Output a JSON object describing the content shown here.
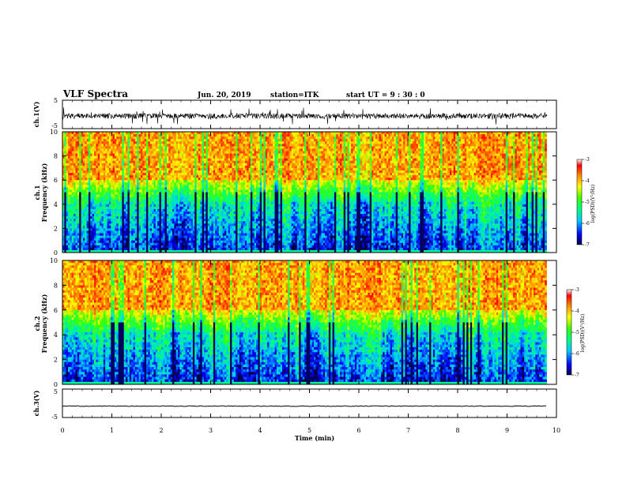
{
  "header": {
    "title": "VLF Spectra",
    "date": "Jun. 20, 2019",
    "station": "station=ITK",
    "start": "start UT =  9 : 30 : 0"
  },
  "chart_data": [
    {
      "type": "line",
      "panel": "ch1-waveform",
      "ylabel": "ch.1(V)",
      "ylim": [
        -5,
        5
      ],
      "yticks": [
        "5",
        "-5"
      ],
      "xlim": [
        0,
        10
      ],
      "color": "#000000"
    },
    {
      "type": "heatmap",
      "panel": "ch1-spectrogram",
      "ylabel": "ch.1\nFrequency (kHz)",
      "ylim": [
        0,
        10
      ],
      "yticks": [
        "0",
        "2",
        "4",
        "6",
        "8",
        "10"
      ],
      "xlim": [
        0,
        10
      ],
      "data_end_min": 9.8,
      "colorbar": {
        "label": "log(PSD)(V²/Hz)",
        "range": [
          -7,
          -3
        ],
        "ticks": [
          "-3",
          "-4",
          "-5",
          "-6",
          "-7"
        ]
      }
    },
    {
      "type": "heatmap",
      "panel": "ch2-spectrogram",
      "ylabel": "ch.2\nFrequency (kHz)",
      "ylim": [
        0,
        10
      ],
      "yticks": [
        "0",
        "2",
        "4",
        "6",
        "8",
        "10"
      ],
      "xlim": [
        0,
        10
      ],
      "data_end_min": 9.8,
      "colorbar": {
        "label": "log(PSD)(V²/Hz)",
        "range": [
          -7,
          -3
        ],
        "ticks": [
          "-3",
          "-4",
          "-5",
          "-6",
          "-7"
        ]
      }
    },
    {
      "type": "line",
      "panel": "ch3-waveform",
      "ylabel": "ch.3(V)",
      "ylim": [
        -5,
        5
      ],
      "yticks": [
        "5",
        "-5"
      ],
      "xlim": [
        0,
        10
      ],
      "baseline_value": -1.0,
      "color": "#000000"
    }
  ],
  "xaxis": {
    "label": "Time (min)",
    "ticks": [
      "0",
      "1",
      "2",
      "3",
      "4",
      "5",
      "6",
      "7",
      "8",
      "9",
      "10"
    ]
  }
}
